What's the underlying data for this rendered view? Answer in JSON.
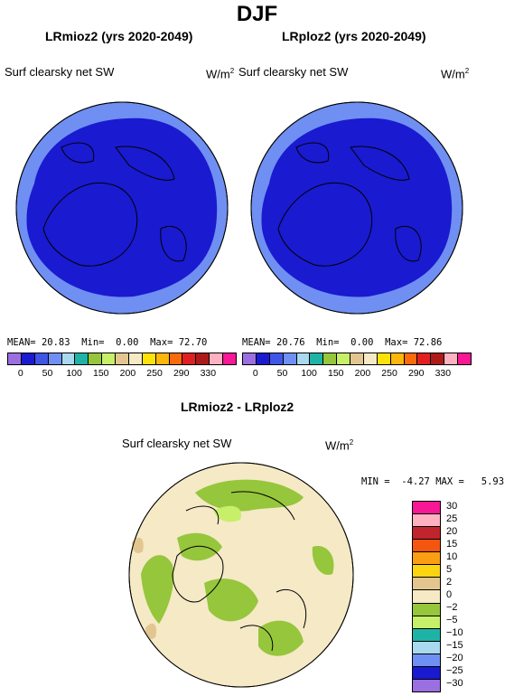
{
  "title": "DJF",
  "panels": [
    {
      "title": "LRmioz2 (yrs 2020-2049)",
      "variable": "Surf clearsky net SW",
      "units": "W/m",
      "units_sup": "2",
      "mean_label": "MEAN=",
      "mean": "20.83",
      "min_label": "Min=",
      "min": "0.00",
      "max_label": "Max=",
      "max": "72.70"
    },
    {
      "title": "LRploz2 (yrs 2020-2049)",
      "variable": "Surf clearsky net SW",
      "units": "W/m",
      "units_sup": "2",
      "mean_label": "MEAN=",
      "mean": "20.76",
      "min_label": "Min=",
      "min": "0.00",
      "max_label": "Max=",
      "max": "72.86"
    }
  ],
  "colorbar_top": {
    "colors": [
      "#9b6fe0",
      "#1a1ad0",
      "#3f55e6",
      "#6f8ff2",
      "#a9d9ee",
      "#1fb3a8",
      "#96c63c",
      "#c7ef6a",
      "#e3c68f",
      "#f5e9c6",
      "#fde30a",
      "#fdb60c",
      "#f96b0b",
      "#e02020",
      "#ad1a1a",
      "#fdb1c1",
      "#f81795"
    ],
    "labels": [
      "0",
      "50",
      "100",
      "150",
      "200",
      "250",
      "290",
      "330"
    ]
  },
  "diff": {
    "title": "LRmioz2 - LRploz2",
    "variable": "Surf clearsky net SW",
    "units": "W/m",
    "units_sup": "2",
    "min_label": "MIN =",
    "min": "-4.27",
    "max_label": "MAX =",
    "max": "5.93"
  },
  "colorbar_diff": {
    "colors": [
      "#f81795",
      "#fdb1c1",
      "#c0242c",
      "#f5560f",
      "#fb9e13",
      "#fbd512",
      "#e3c68f",
      "#f5e9c6",
      "#96c63c",
      "#c7ef6a",
      "#1fb3a8",
      "#a9d9ee",
      "#6f8ff2",
      "#1a1ad0",
      "#9b6fe0"
    ],
    "labels": [
      "30",
      "25",
      "20",
      "15",
      "10",
      "5",
      "2",
      "0",
      "−2",
      "−5",
      "−10",
      "−15",
      "−20",
      "−25",
      "−30"
    ]
  }
}
